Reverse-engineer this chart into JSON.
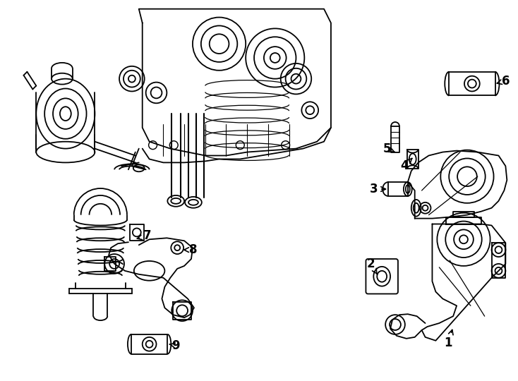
{
  "background_color": "#ffffff",
  "line_color": "#000000",
  "line_width": 1.3,
  "fig_width": 7.34,
  "fig_height": 5.4,
  "dpi": 100
}
